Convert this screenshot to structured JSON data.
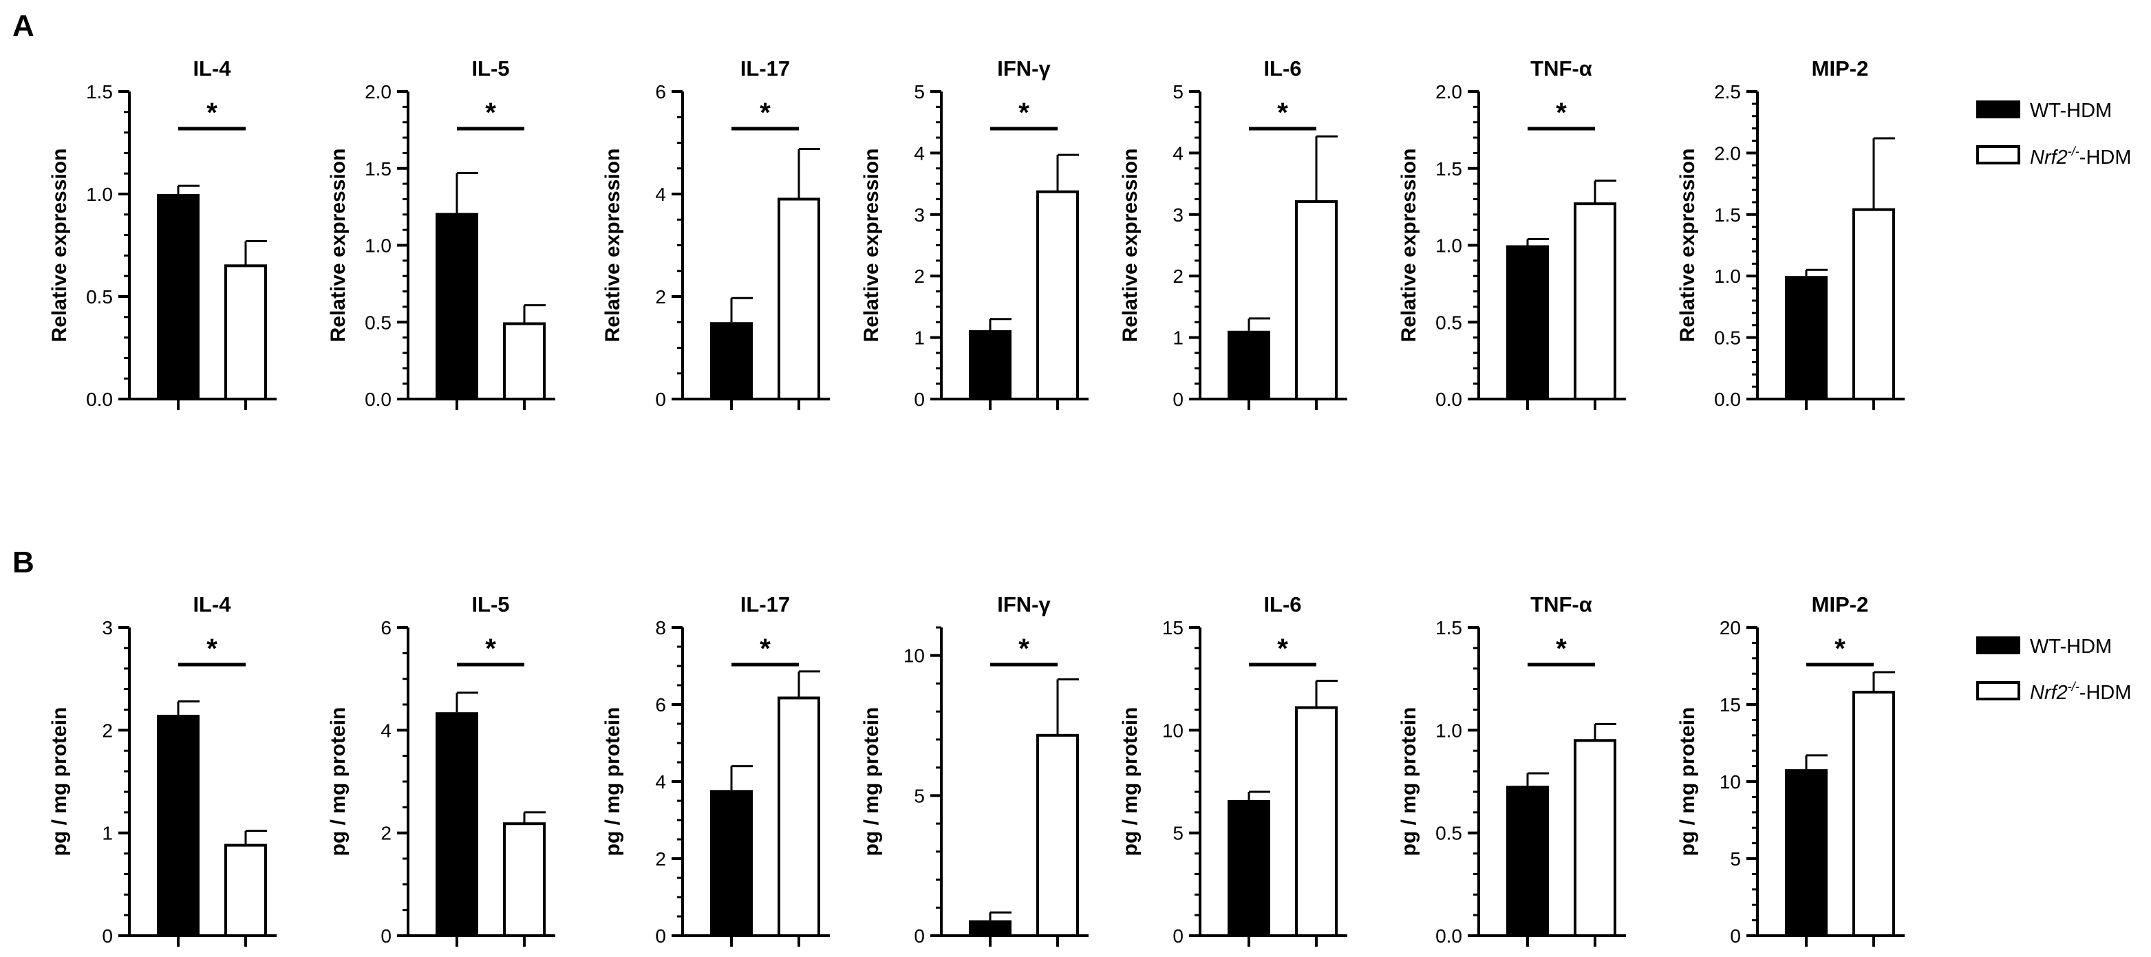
{
  "panels": [
    {
      "letter": "A",
      "ylabel": "Relative expression",
      "legend": {
        "wt_label": "WT-HDM",
        "ko_prefix": "Nrf2",
        "ko_superscript": "-/-",
        "ko_suffix": "-HDM"
      }
    },
    {
      "letter": "B",
      "ylabel": "pg / mg protein",
      "legend": {
        "wt_label": "WT-HDM",
        "ko_prefix": "Nrf2",
        "ko_superscript": "-/-",
        "ko_suffix": "-HDM"
      }
    }
  ],
  "colors": {
    "wt_fill": "#000000",
    "ko_fill": "#ffffff",
    "axis": "#000000"
  },
  "chart_data": [
    {
      "panel": "A",
      "type": "bar",
      "title": "IL-4",
      "ylabel": "Relative expression",
      "categories": [
        "WT-HDM",
        "Nrf2-/--HDM"
      ],
      "values": [
        1.0,
        0.65
      ],
      "errors": [
        0.04,
        0.12
      ],
      "ylim": [
        0,
        1.5
      ],
      "ticks": [
        0,
        0.5,
        1.0,
        1.5
      ],
      "tick_labels": [
        "0.0",
        "0.5",
        "1.0",
        "1.5"
      ],
      "minor_step": 0.1,
      "significance": "*"
    },
    {
      "panel": "A",
      "type": "bar",
      "title": "IL-5",
      "ylabel": "Relative expression",
      "categories": [
        "WT-HDM",
        "Nrf2-/--HDM"
      ],
      "values": [
        1.21,
        0.49
      ],
      "errors": [
        0.26,
        0.12
      ],
      "ylim": [
        0,
        2.0
      ],
      "ticks": [
        0,
        0.5,
        1.0,
        1.5,
        2.0
      ],
      "tick_labels": [
        "0.0",
        "0.5",
        "1.0",
        "1.5",
        "2.0"
      ],
      "minor_step": 0.1,
      "significance": "*"
    },
    {
      "panel": "A",
      "type": "bar",
      "title": "IL-17",
      "ylabel": "Relative expression",
      "categories": [
        "WT-HDM",
        "Nrf2-/--HDM"
      ],
      "values": [
        1.5,
        3.9
      ],
      "errors": [
        0.47,
        0.98
      ],
      "ylim": [
        0,
        6
      ],
      "ticks": [
        0,
        2,
        4,
        6
      ],
      "tick_labels": [
        "0",
        "2",
        "4",
        "6"
      ],
      "minor_step": 0.5,
      "significance": "*"
    },
    {
      "panel": "A",
      "type": "bar",
      "title": "IFN-γ",
      "ylabel": "Relative expression",
      "categories": [
        "WT-HDM",
        "Nrf2-/--HDM"
      ],
      "values": [
        1.12,
        3.37
      ],
      "errors": [
        0.18,
        0.6
      ],
      "ylim": [
        0,
        5
      ],
      "ticks": [
        0,
        1,
        2,
        3,
        4,
        5
      ],
      "tick_labels": [
        "0",
        "1",
        "2",
        "3",
        "4",
        "5"
      ],
      "minor_step": 0.25,
      "significance": "*"
    },
    {
      "panel": "A",
      "type": "bar",
      "title": "IL-6",
      "ylabel": "Relative expression",
      "categories": [
        "WT-HDM",
        "Nrf2-/--HDM"
      ],
      "values": [
        1.11,
        3.21
      ],
      "errors": [
        0.2,
        1.06
      ],
      "ylim": [
        0,
        5
      ],
      "ticks": [
        0,
        1,
        2,
        3,
        4,
        5
      ],
      "tick_labels": [
        "0",
        "1",
        "2",
        "3",
        "4",
        "5"
      ],
      "minor_step": 0.25,
      "significance": "*"
    },
    {
      "panel": "A",
      "type": "bar",
      "title": "TNF-α",
      "ylabel": "Relative expression",
      "categories": [
        "WT-HDM",
        "Nrf2-/--HDM"
      ],
      "values": [
        1.0,
        1.27
      ],
      "errors": [
        0.04,
        0.15
      ],
      "ylim": [
        0,
        2.0
      ],
      "ticks": [
        0,
        0.5,
        1.0,
        1.5,
        2.0
      ],
      "tick_labels": [
        "0.0",
        "0.5",
        "1.0",
        "1.5",
        "2.0"
      ],
      "minor_step": 0.1,
      "significance": "*"
    },
    {
      "panel": "A",
      "type": "bar",
      "title": "MIP-2",
      "ylabel": "Relative expression",
      "categories": [
        "WT-HDM",
        "Nrf2-/--HDM"
      ],
      "values": [
        1.0,
        1.54
      ],
      "errors": [
        0.05,
        0.58
      ],
      "ylim": [
        0,
        2.5
      ],
      "ticks": [
        0,
        0.5,
        1.0,
        1.5,
        2.0,
        2.5
      ],
      "tick_labels": [
        "0.0",
        "0.5",
        "1.0",
        "1.5",
        "2.0",
        "2.5"
      ],
      "minor_step": 0.1,
      "significance": ""
    },
    {
      "panel": "B",
      "type": "bar",
      "title": "IL-4",
      "ylabel": "pg / mg protein",
      "categories": [
        "WT-HDM",
        "Nrf2-/--HDM"
      ],
      "values": [
        2.15,
        0.88
      ],
      "errors": [
        0.13,
        0.14
      ],
      "ylim": [
        0,
        3
      ],
      "ticks": [
        0,
        1,
        2,
        3
      ],
      "tick_labels": [
        "0",
        "1",
        "2",
        "3"
      ],
      "minor_step": 0.2,
      "significance": "*"
    },
    {
      "panel": "B",
      "type": "bar",
      "title": "IL-5",
      "ylabel": "pg / mg protein",
      "categories": [
        "WT-HDM",
        "Nrf2-/--HDM"
      ],
      "values": [
        4.35,
        2.18
      ],
      "errors": [
        0.38,
        0.22
      ],
      "ylim": [
        0,
        6
      ],
      "ticks": [
        0,
        2,
        4,
        6
      ],
      "tick_labels": [
        "0",
        "2",
        "4",
        "6"
      ],
      "minor_step": 0.5,
      "significance": "*"
    },
    {
      "panel": "B",
      "type": "bar",
      "title": "IL-17",
      "ylabel": "pg / mg protein",
      "categories": [
        "WT-HDM",
        "Nrf2-/--HDM"
      ],
      "values": [
        3.78,
        6.17
      ],
      "errors": [
        0.62,
        0.69
      ],
      "ylim": [
        0,
        8
      ],
      "ticks": [
        0,
        2,
        4,
        6,
        8
      ],
      "tick_labels": [
        "0",
        "2",
        "4",
        "6",
        "8"
      ],
      "minor_step": 0.5,
      "significance": "*"
    },
    {
      "panel": "B",
      "type": "bar",
      "title": "IFN-γ",
      "ylabel": "pg / mg protein",
      "categories": [
        "WT-HDM",
        "Nrf2-/--HDM"
      ],
      "values": [
        0.55,
        7.15
      ],
      "errors": [
        0.28,
        2.0
      ],
      "ylim": [
        0,
        11
      ],
      "ticks": [
        0,
        5,
        10
      ],
      "tick_labels": [
        "0",
        "5",
        "10"
      ],
      "minor_step": 1,
      "significance": "*"
    },
    {
      "panel": "B",
      "type": "bar",
      "title": "IL-6",
      "ylabel": "pg / mg protein",
      "categories": [
        "WT-HDM",
        "Nrf2-/--HDM"
      ],
      "values": [
        6.6,
        11.1
      ],
      "errors": [
        0.4,
        1.3
      ],
      "ylim": [
        0,
        15
      ],
      "ticks": [
        0,
        5,
        10,
        15
      ],
      "tick_labels": [
        "0",
        "5",
        "10",
        "15"
      ],
      "minor_step": 1,
      "significance": "*"
    },
    {
      "panel": "B",
      "type": "bar",
      "title": "TNF-α",
      "ylabel": "pg / mg protein",
      "categories": [
        "WT-HDM",
        "Nrf2-/--HDM"
      ],
      "values": [
        0.73,
        0.95
      ],
      "errors": [
        0.06,
        0.08
      ],
      "ylim": [
        0,
        1.5
      ],
      "ticks": [
        0,
        0.5,
        1.0,
        1.5
      ],
      "tick_labels": [
        "0.0",
        "0.5",
        "1.0",
        "1.5"
      ],
      "minor_step": 0.1,
      "significance": "*"
    },
    {
      "panel": "B",
      "type": "bar",
      "title": "MIP-2",
      "ylabel": "pg / mg protein",
      "categories": [
        "WT-HDM",
        "Nrf2-/--HDM"
      ],
      "values": [
        10.8,
        15.8
      ],
      "errors": [
        0.9,
        1.3
      ],
      "ylim": [
        0,
        20
      ],
      "ticks": [
        0,
        5,
        10,
        15,
        20
      ],
      "tick_labels": [
        "0",
        "5",
        "10",
        "15",
        "20"
      ],
      "minor_step": 1,
      "significance": "*"
    }
  ]
}
